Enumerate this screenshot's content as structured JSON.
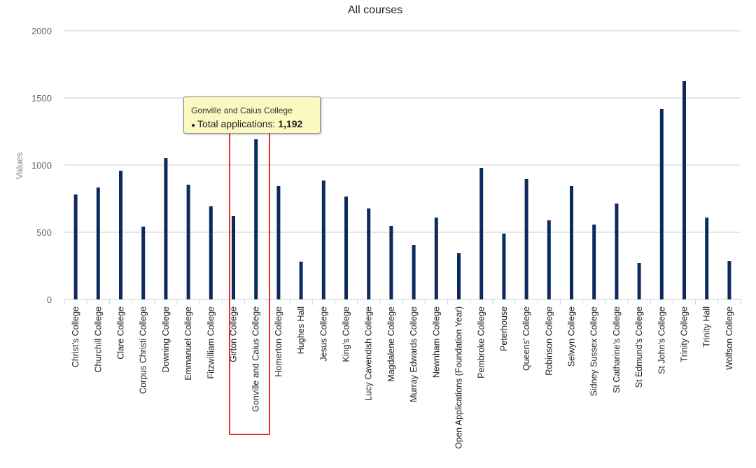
{
  "chart_data": {
    "type": "bar",
    "title": "All courses",
    "xlabel": "",
    "ylabel": "Values",
    "ylim": [
      0,
      2000
    ],
    "yticks": [
      0,
      500,
      1000,
      1500,
      2000
    ],
    "grid": true,
    "bar_color": "#0d2a5e",
    "categories": [
      "Christ's College",
      "Churchill College",
      "Clare College",
      "Corpus Christi College",
      "Downing College",
      "Emmanuel College",
      "Fitzwilliam College",
      "Girton College",
      "Gonville and Caius College",
      "Homerton College",
      "Hughes Hall",
      "Jesus College",
      "King's College",
      "Lucy Cavendish College",
      "Magdalene College",
      "Murray Edwards College",
      "Newnham College",
      "Open Applications (Foundation Year)",
      "Pembroke College",
      "Peterhouse",
      "Queens' College",
      "Robinson College",
      "Selwyn College",
      "Sidney Sussex College",
      "St Catharine's College",
      "St Edmund's College",
      "St John's College",
      "Trinity College",
      "Trinity Hall",
      "Wolfson College"
    ],
    "series": [
      {
        "values": [
          781,
          833,
          958,
          542,
          1052,
          854,
          693,
          620,
          1192,
          844,
          281,
          885,
          766,
          677,
          547,
          406,
          609,
          344,
          979,
          490,
          896,
          589,
          844,
          557,
          714,
          271,
          1417,
          1625,
          609,
          286
        ]
      }
    ]
  },
  "tooltip": {
    "title": "Gonville and Caius College",
    "series_label": "Total applications:",
    "value": "1,192"
  },
  "highlight_color": "#e8302a"
}
